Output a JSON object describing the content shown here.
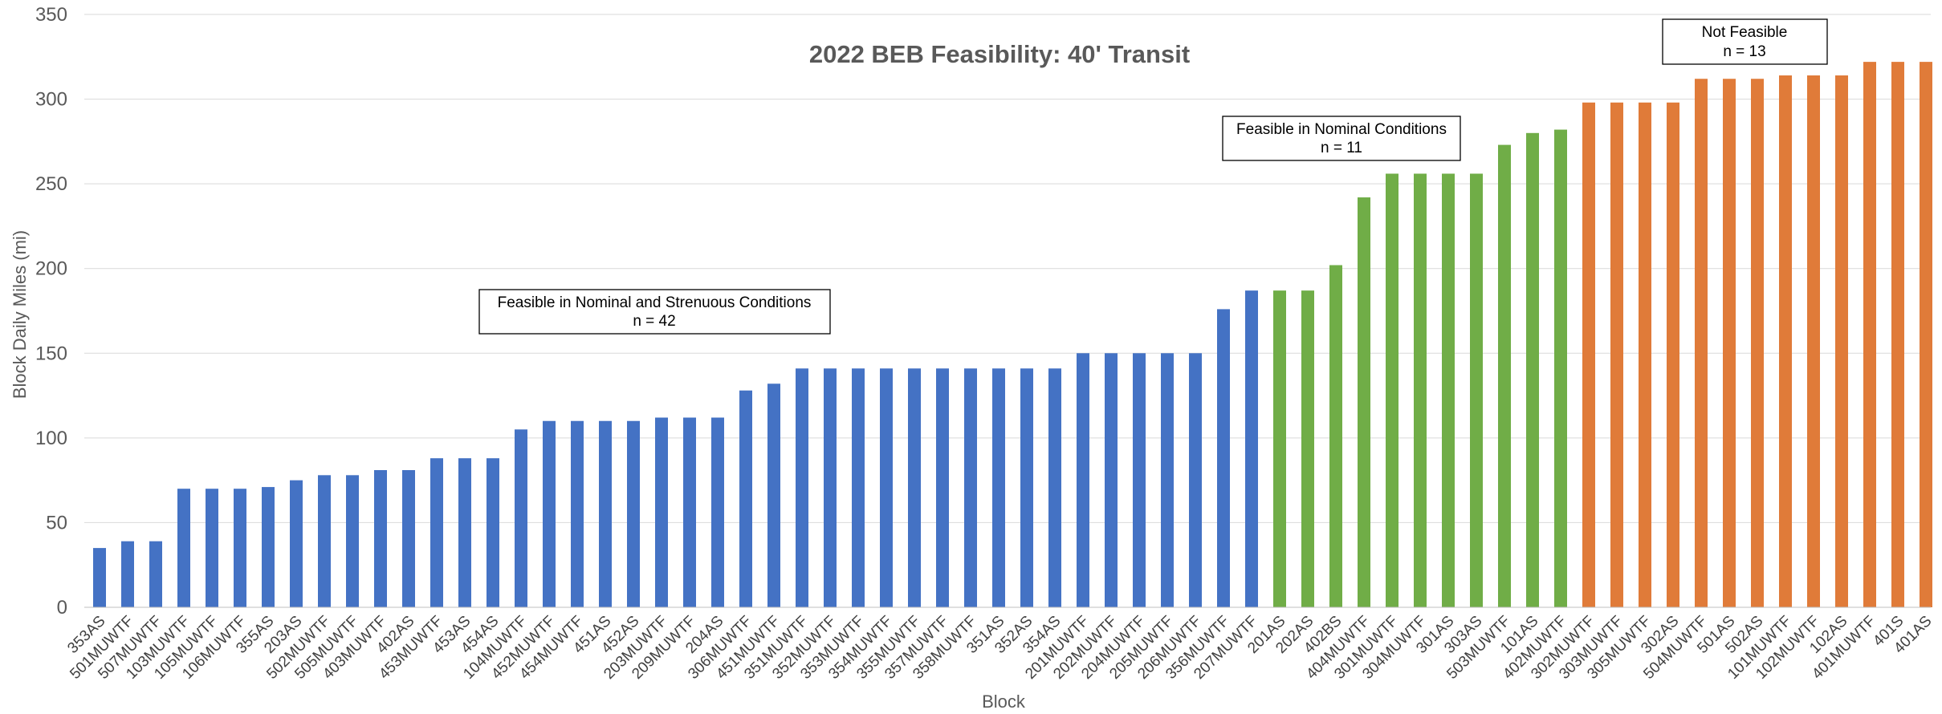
{
  "chart_data": {
    "type": "bar",
    "title": "2022 BEB Feasibility: 40' Transit",
    "xlabel": "Block",
    "ylabel": "Block Daily Miles (mi)",
    "ylim": [
      0,
      350
    ],
    "yticks": [
      0,
      50,
      100,
      150,
      200,
      250,
      300,
      350
    ],
    "grid": true,
    "categories": [
      "353AS",
      "501MUWTF",
      "507MUWTF",
      "103MUWTF",
      "105MUWTF",
      "106MUWTF",
      "355AS",
      "203AS",
      "502MUWTF",
      "505MUWTF",
      "403MUWTF",
      "402AS",
      "453MUWTF",
      "453AS",
      "454AS",
      "104MUWTF",
      "452MUWTF",
      "454MUWTF",
      "451AS",
      "452AS",
      "203MUWTF",
      "209MUWTF",
      "204AS",
      "306MUWTF",
      "451MUWTF",
      "351MUWTF",
      "352MUWTF",
      "353MUWTF",
      "354MUWTF",
      "355MUWTF",
      "357MUWTF",
      "358MUWTF",
      "351AS",
      "352AS",
      "354AS",
      "201MUWTF",
      "202MUWTF",
      "204MUWTF",
      "205MUWTF",
      "206MUWTF",
      "356MUWTF",
      "207MUWTF",
      "201AS",
      "202AS",
      "402BS",
      "404MUWTF",
      "301MUWTF",
      "304MUWTF",
      "301AS",
      "303AS",
      "503MUWTF",
      "101AS",
      "402MUWTF",
      "302MUWTF",
      "303MUWTF",
      "305MUWTF",
      "302AS",
      "504MUWTF",
      "501AS",
      "502AS",
      "101MUWTF",
      "102MUWTF",
      "102AS",
      "401MUWTF",
      "401S",
      "401AS"
    ],
    "values": [
      35,
      39,
      39,
      70,
      70,
      70,
      71,
      75,
      78,
      78,
      81,
      81,
      88,
      88,
      88,
      105,
      110,
      110,
      110,
      110,
      112,
      112,
      112,
      128,
      132,
      141,
      141,
      141,
      141,
      141,
      141,
      141,
      141,
      141,
      141,
      150,
      150,
      150,
      150,
      150,
      176,
      187,
      187,
      187,
      202,
      242,
      256,
      256,
      256,
      256,
      273,
      280,
      282,
      298,
      298,
      298,
      298,
      312,
      312,
      312,
      314,
      314,
      314,
      322,
      322,
      322
    ],
    "groups": [
      {
        "name": "Feasible in Nominal and Strenuous Conditions",
        "n_label": "n = 42",
        "start": 0,
        "end": 41,
        "color": "#4472c4"
      },
      {
        "name": "Feasible in Nominal Conditions",
        "n_label": "n = 11",
        "start": 42,
        "end": 52,
        "color": "#70ad47"
      },
      {
        "name": "Not Feasible",
        "n_label": "n = 13",
        "start": 53,
        "end": 65,
        "color": "#e07b39"
      }
    ]
  }
}
